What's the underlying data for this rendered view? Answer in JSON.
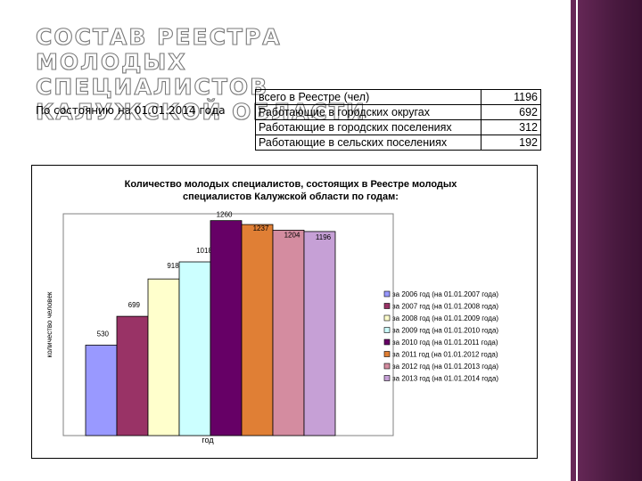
{
  "slide": {
    "title": "СОСТАВ РЕЕСТРА МОЛОДЫХ СПЕЦИАЛИСТОВ КАЛУЖСКОЙ ОБЛАСТИ",
    "subtitle": "По состоянию на 01.01.2014 года"
  },
  "registry_table": {
    "rows": [
      {
        "label": "всего в Реестре (чел)",
        "value": "1196"
      },
      {
        "label": "Работающие в городских округах",
        "value": "692"
      },
      {
        "label": "Работающие в городских поселениях",
        "value": "312"
      },
      {
        "label": "Работающие в сельских поселениях",
        "value": "192"
      }
    ]
  },
  "chart_data": {
    "type": "bar",
    "title": "Количество молодых специалистов, состоящих в Реестре молодых специалистов Калужской области по годам:",
    "title_lines": [
      "Количество молодых специалистов, состоящих в Реестре молодых",
      "специалистов Калужской области по годам:"
    ],
    "xlabel": "год",
    "ylabel": "количество человек",
    "ylim": [
      0,
      1300
    ],
    "grid": false,
    "legend_position": "right",
    "series": [
      {
        "name": "за 2006 год (на 01.01.2007 года)",
        "value": 530,
        "color": "#9999ff"
      },
      {
        "name": "за 2007 год (на 01.01.2008 года)",
        "value": 699,
        "color": "#993366"
      },
      {
        "name": "за 2008 год (на 01.01.2009 года)",
        "value": 918,
        "color": "#ffffcc"
      },
      {
        "name": "за 2009 год (на 01.01.2010 года)",
        "value": 1018,
        "color": "#ccffff"
      },
      {
        "name": "за 2010 год (на 01.01.2011 года)",
        "value": 1260,
        "color": "#660066"
      },
      {
        "name": "за 2011 год (на 01.01.2012 года)",
        "value": 1237,
        "color": "#e07f35"
      },
      {
        "name": "за 2012 год (на 01.01.2013 года)",
        "value": 1204,
        "color": "#d48ca0"
      },
      {
        "name": "за 2013 год (на 01.01.2014 года)",
        "value": 1196,
        "color": "#c6a0d6"
      }
    ]
  }
}
